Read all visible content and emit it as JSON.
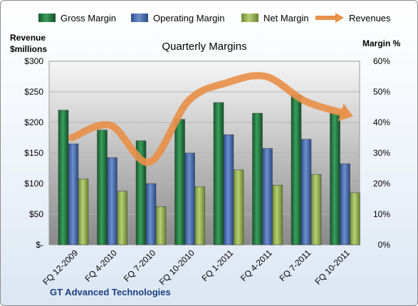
{
  "chart_data": {
    "type": "bar",
    "title": "Quarterly Margins",
    "ylabel_left": [
      "Revenue",
      "$millions"
    ],
    "ylabel_right": "Margin %",
    "ylim_left": [
      0,
      300
    ],
    "ylim_right": [
      0,
      60
    ],
    "left_ticks": [
      "$-",
      "$50",
      "$100",
      "$150",
      "$200",
      "$250",
      "$300"
    ],
    "right_ticks": [
      "0%",
      "10%",
      "20%",
      "30%",
      "40%",
      "50%",
      "60%"
    ],
    "categories": [
      "FQ 12-2009",
      "FQ 4-2010",
      "FQ 7-2010",
      "FQ 10-2010",
      "FQ 1-2011",
      "FQ 4-2011",
      "FQ 7-2011",
      "FQ 10-2011"
    ],
    "series": [
      {
        "name": "Gross Margin",
        "axis": "right",
        "color": "#2e8b4a",
        "values": [
          44,
          37.5,
          34,
          41,
          46.5,
          43,
          49,
          43
        ]
      },
      {
        "name": "Operating Margin",
        "axis": "right",
        "color": "#4f74b5",
        "values": [
          33,
          28.5,
          20,
          30,
          36,
          31.5,
          34.5,
          26.5
        ]
      },
      {
        "name": "Net Margin",
        "axis": "right",
        "color": "#9bbb59",
        "values": [
          21.5,
          17.5,
          12.5,
          19,
          24.5,
          19.5,
          23,
          17
        ]
      },
      {
        "name": "Revenues",
        "axis": "left",
        "type": "line",
        "color": "#e8904a",
        "values": [
          175,
          195,
          135,
          235,
          265,
          275,
          235,
          215
        ]
      }
    ],
    "grid": true,
    "legend": "top"
  },
  "footer": "GT Advanced Technologies"
}
